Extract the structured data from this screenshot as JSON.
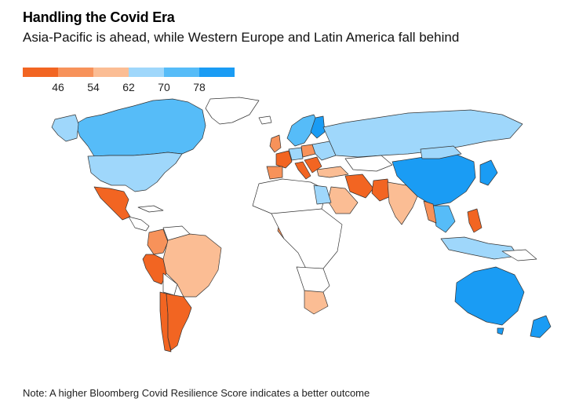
{
  "header": {
    "title": "Handling the Covid Era",
    "subtitle": "Asia-Pacific is ahead, while Western Europe and Latin America fall behind"
  },
  "legend": {
    "ticks": [
      "46",
      "54",
      "62",
      "70",
      "78"
    ],
    "colors": [
      "#f26522",
      "#f7925a",
      "#fbbd94",
      "#9fd7fb",
      "#56bcf8",
      "#1a9cf4"
    ]
  },
  "colors": {
    "no_data": "#ffffff",
    "border": "#333333"
  },
  "footer": {
    "note": "Note: A higher Bloomberg Covid Resilience Score indicates a better outcome"
  }
}
